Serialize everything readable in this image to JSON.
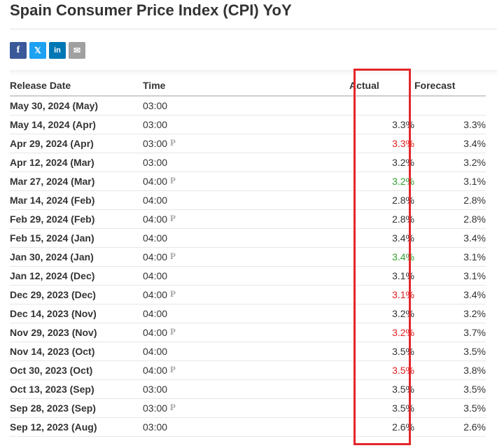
{
  "page": {
    "title": "Spain Consumer Price Index (CPI) YoY"
  },
  "share": {
    "facebook": "f",
    "twitter": "𝕏",
    "linkedin": "in",
    "email": "✉"
  },
  "table": {
    "headers": {
      "release_date": "Release Date",
      "time": "Time",
      "actual": "Actual",
      "forecast": "Forecast"
    },
    "preliminary_mark": "P",
    "rows": [
      {
        "date": "May 30, 2024 (May)",
        "time": "03:00",
        "prelim": false,
        "actual": "",
        "actual_status": "neutral",
        "forecast": ""
      },
      {
        "date": "May 14, 2024 (Apr)",
        "time": "03:00",
        "prelim": false,
        "actual": "3.3%",
        "actual_status": "neutral",
        "forecast": "3.3%"
      },
      {
        "date": "Apr 29, 2024 (Apr)",
        "time": "03:00",
        "prelim": true,
        "actual": "3.3%",
        "actual_status": "negative",
        "forecast": "3.4%"
      },
      {
        "date": "Apr 12, 2024 (Mar)",
        "time": "03:00",
        "prelim": false,
        "actual": "3.2%",
        "actual_status": "neutral",
        "forecast": "3.2%"
      },
      {
        "date": "Mar 27, 2024 (Mar)",
        "time": "04:00",
        "prelim": true,
        "actual": "3.2%",
        "actual_status": "positive",
        "forecast": "3.1%"
      },
      {
        "date": "Mar 14, 2024 (Feb)",
        "time": "04:00",
        "prelim": false,
        "actual": "2.8%",
        "actual_status": "neutral",
        "forecast": "2.8%"
      },
      {
        "date": "Feb 29, 2024 (Feb)",
        "time": "04:00",
        "prelim": true,
        "actual": "2.8%",
        "actual_status": "neutral",
        "forecast": "2.8%"
      },
      {
        "date": "Feb 15, 2024 (Jan)",
        "time": "04:00",
        "prelim": false,
        "actual": "3.4%",
        "actual_status": "neutral",
        "forecast": "3.4%"
      },
      {
        "date": "Jan 30, 2024 (Jan)",
        "time": "04:00",
        "prelim": true,
        "actual": "3.4%",
        "actual_status": "positive",
        "forecast": "3.1%"
      },
      {
        "date": "Jan 12, 2024 (Dec)",
        "time": "04:00",
        "prelim": false,
        "actual": "3.1%",
        "actual_status": "neutral",
        "forecast": "3.1%"
      },
      {
        "date": "Dec 29, 2023 (Dec)",
        "time": "04:00",
        "prelim": true,
        "actual": "3.1%",
        "actual_status": "negative",
        "forecast": "3.4%"
      },
      {
        "date": "Dec 14, 2023 (Nov)",
        "time": "04:00",
        "prelim": false,
        "actual": "3.2%",
        "actual_status": "neutral",
        "forecast": "3.2%"
      },
      {
        "date": "Nov 29, 2023 (Nov)",
        "time": "04:00",
        "prelim": true,
        "actual": "3.2%",
        "actual_status": "negative",
        "forecast": "3.7%"
      },
      {
        "date": "Nov 14, 2023 (Oct)",
        "time": "04:00",
        "prelim": false,
        "actual": "3.5%",
        "actual_status": "neutral",
        "forecast": "3.5%"
      },
      {
        "date": "Oct 30, 2023 (Oct)",
        "time": "04:00",
        "prelim": true,
        "actual": "3.5%",
        "actual_status": "negative",
        "forecast": "3.8%"
      },
      {
        "date": "Oct 13, 2023 (Sep)",
        "time": "03:00",
        "prelim": false,
        "actual": "3.5%",
        "actual_status": "neutral",
        "forecast": "3.5%"
      },
      {
        "date": "Sep 28, 2023 (Sep)",
        "time": "03:00",
        "prelim": true,
        "actual": "3.5%",
        "actual_status": "neutral",
        "forecast": "3.5%"
      },
      {
        "date": "Sep 12, 2023 (Aug)",
        "time": "03:00",
        "prelim": false,
        "actual": "2.6%",
        "actual_status": "neutral",
        "forecast": "2.6%"
      }
    ]
  },
  "colors": {
    "negative": "#e0201e",
    "positive": "#31a02f",
    "highlight_box": "#e3262b"
  }
}
